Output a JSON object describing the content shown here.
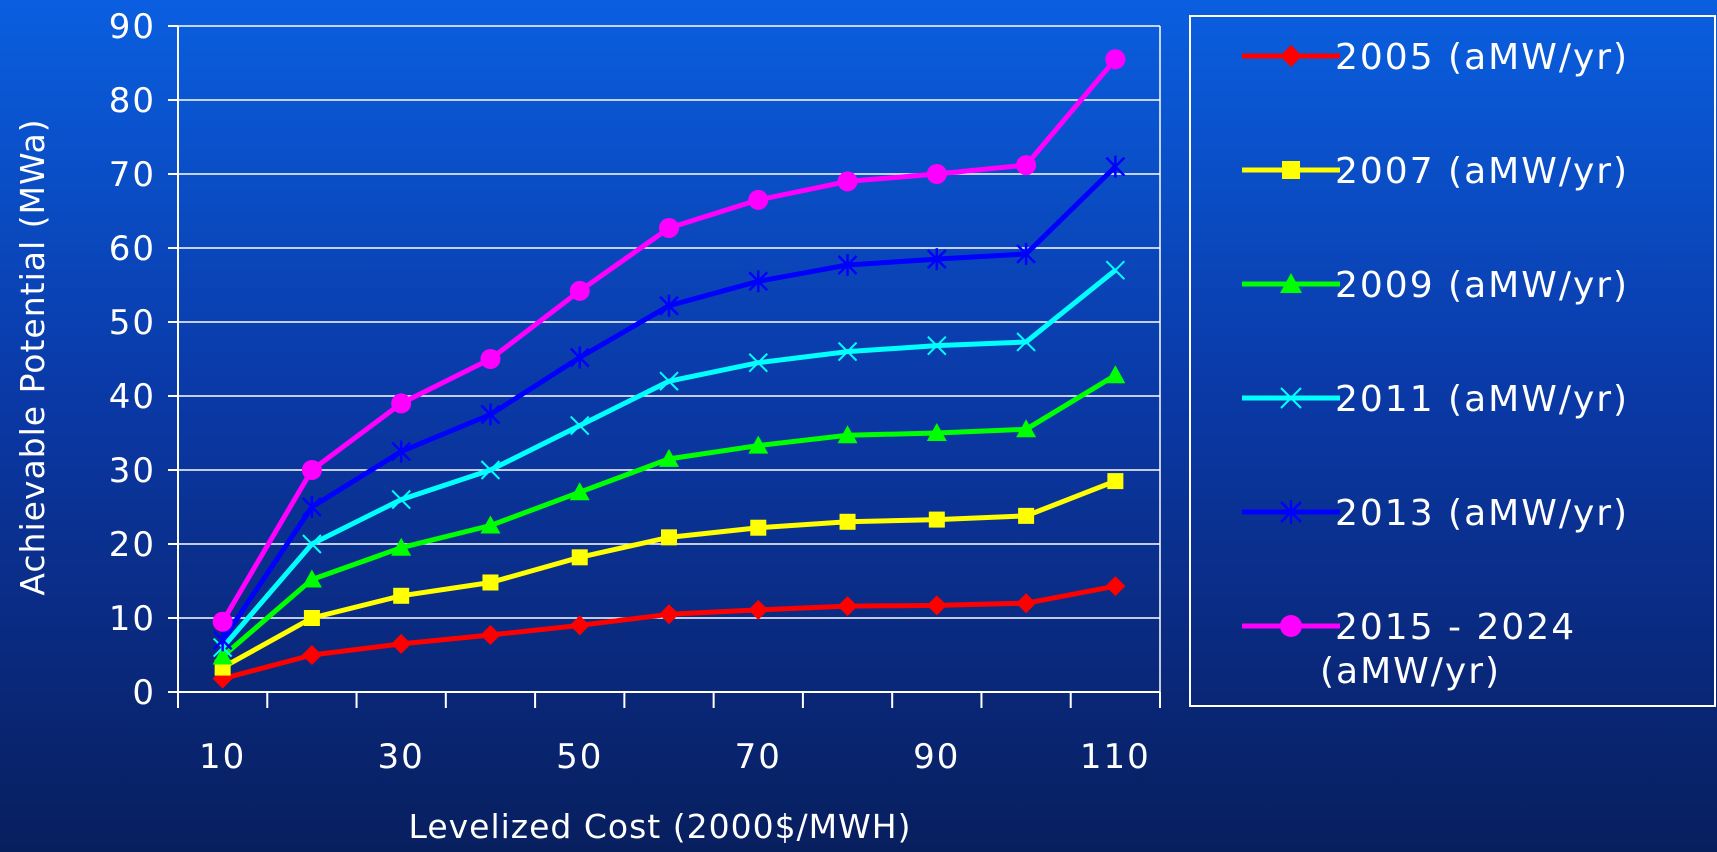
{
  "chart_data": {
    "type": "line",
    "title": "",
    "xlabel": "Levelized Cost (2000$/MWH)",
    "ylabel": "Achievable Potential (MWa)",
    "ylim": [
      0,
      90
    ],
    "y_ticks": [
      "0",
      "10",
      "20",
      "30",
      "40",
      "50",
      "60",
      "70",
      "80",
      "90"
    ],
    "x_tick_labels": [
      "10",
      "30",
      "50",
      "70",
      "90",
      "110"
    ],
    "categories": [
      "10",
      "20",
      "30",
      "40",
      "50",
      "60",
      "70",
      "80",
      "90",
      "100",
      "110"
    ],
    "grid": true,
    "legend_position": "right",
    "series": [
      {
        "name": "2005 (aMW/yr)",
        "color": "#ff0000",
        "marker": "diamond",
        "values": [
          1.8,
          5.0,
          6.5,
          7.7,
          9.0,
          10.5,
          11.1,
          11.6,
          11.7,
          12.0,
          14.3
        ]
      },
      {
        "name": "2007 (aMW/yr)",
        "color": "#ffff00",
        "marker": "square",
        "values": [
          3.3,
          10.0,
          13.0,
          14.8,
          18.2,
          20.9,
          22.2,
          23.0,
          23.3,
          23.8,
          28.5
        ]
      },
      {
        "name": "2009 (aMW/yr)",
        "color": "#00ff00",
        "marker": "triangle",
        "values": [
          4.8,
          15.2,
          19.5,
          22.5,
          27.0,
          31.5,
          33.3,
          34.7,
          35.0,
          35.5,
          42.8
        ]
      },
      {
        "name": "2011 (aMW/yr)",
        "color": "#00ffff",
        "marker": "x",
        "values": [
          6.0,
          20.0,
          26.0,
          30.0,
          36.0,
          42.0,
          44.5,
          46.0,
          46.8,
          47.3,
          57.0
        ]
      },
      {
        "name": "2013 (aMW/yr)",
        "color": "#0000ff",
        "marker": "asterisk",
        "values": [
          7.0,
          25.0,
          32.5,
          37.5,
          45.2,
          52.2,
          55.5,
          57.7,
          58.5,
          59.2,
          71.0
        ]
      },
      {
        "name": "2015 - 2024 (aMW/yr)",
        "color": "#ff00ff",
        "marker": "circle",
        "values": [
          9.5,
          30.0,
          39.0,
          45.0,
          54.2,
          62.7,
          66.5,
          69.0,
          70.0,
          71.2,
          85.5
        ]
      }
    ]
  }
}
